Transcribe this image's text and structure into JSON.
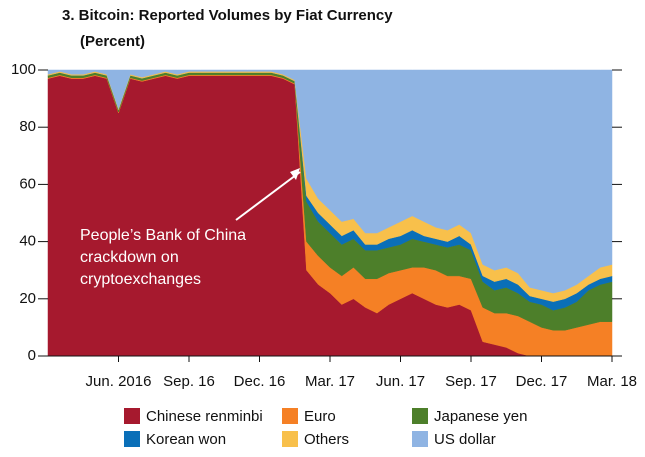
{
  "chart_data": {
    "type": "stacked_area",
    "title": "3. Bitcoin: Reported Volumes by Fiat Currency",
    "subtitle": "(Percent)",
    "annotation": [
      "People’s Bank of China",
      "crackdown on",
      "cryptoexchanges"
    ],
    "categories": [
      null,
      null,
      null,
      null,
      null,
      null,
      "Jun. 2016",
      null,
      null,
      null,
      null,
      null,
      "Sep. 16",
      null,
      null,
      null,
      null,
      null,
      "Dec. 16",
      null,
      null,
      null,
      null,
      null,
      "Mar. 17",
      null,
      null,
      null,
      null,
      null,
      "Jun. 17",
      null,
      null,
      null,
      null,
      null,
      "Sep. 17",
      null,
      null,
      null,
      null,
      null,
      "Dec. 17",
      null,
      null,
      null,
      null,
      null,
      "Mar. 18"
    ],
    "ylim": [
      0,
      100
    ],
    "yticks": [
      0,
      20,
      40,
      60,
      80,
      100
    ],
    "series": [
      {
        "name": "Chinese renminbi",
        "color": "#a6192e",
        "values": [
          97,
          98,
          97,
          97,
          98,
          97,
          85,
          97,
          96,
          97,
          98,
          97,
          98,
          98,
          98,
          98,
          98,
          98,
          98,
          98,
          97,
          95,
          30,
          25,
          22,
          18,
          20,
          17,
          15,
          18,
          20,
          22,
          20,
          18,
          17,
          18,
          16,
          5,
          4,
          3,
          1,
          0,
          0,
          0,
          0,
          0,
          0,
          0,
          0
        ]
      },
      {
        "name": "Euro",
        "color": "#f58025",
        "values": [
          0.3,
          0.3,
          0.3,
          0.3,
          0.3,
          0.3,
          0.3,
          0.3,
          0.3,
          0.3,
          0.3,
          0.3,
          0.3,
          0.3,
          0.3,
          0.3,
          0.3,
          0.3,
          0.3,
          0.3,
          0.3,
          0.3,
          10,
          10,
          9,
          10,
          11,
          10,
          12,
          11,
          10,
          9,
          11,
          12,
          11,
          10,
          11,
          12,
          11,
          12,
          13,
          12,
          10,
          9,
          9,
          10,
          11,
          12,
          12
        ]
      },
      {
        "name": "Japanese yen",
        "color": "#4d7f2a",
        "values": [
          0.8,
          0.8,
          0.8,
          0.8,
          0.8,
          0.8,
          0.8,
          0.8,
          0.8,
          0.8,
          0.8,
          0.8,
          0.8,
          0.8,
          0.8,
          0.8,
          0.8,
          0.8,
          0.8,
          0.8,
          0.8,
          0.8,
          14,
          12,
          12,
          11,
          10,
          10,
          10,
          9,
          9,
          10,
          9,
          9,
          10,
          11,
          10,
          9,
          8,
          9,
          8,
          7,
          8,
          7,
          8,
          9,
          12,
          13,
          14
        ]
      },
      {
        "name": "Korean won",
        "color": "#0a6fb8",
        "values": [
          0,
          0,
          0,
          0,
          0,
          0,
          0,
          0,
          0,
          0,
          0,
          0,
          0,
          0,
          0,
          0,
          0,
          0,
          0,
          0,
          0,
          0,
          2,
          3,
          3,
          3,
          3,
          2,
          2,
          3,
          3,
          3,
          2,
          2,
          2,
          3,
          2,
          2,
          3,
          3,
          3,
          2,
          2,
          3,
          3,
          3,
          2,
          2,
          2
        ]
      },
      {
        "name": "Others",
        "color": "#f8c04b",
        "values": [
          0.4,
          0.4,
          0.4,
          0.4,
          0.4,
          0.4,
          0.4,
          0.4,
          0.4,
          0.4,
          0.4,
          0.4,
          0.4,
          0.4,
          0.4,
          0.4,
          0.4,
          0.4,
          0.4,
          0.4,
          0.4,
          0.4,
          6,
          5,
          5,
          5,
          4,
          4,
          4,
          4,
          5,
          5,
          5,
          4,
          4,
          4,
          4,
          4,
          4,
          4,
          4,
          3,
          3,
          3,
          3,
          3,
          3,
          4,
          4
        ]
      },
      {
        "name": "US dollar",
        "color": "#8fb4e3",
        "values": [
          1.5,
          0.5,
          1.5,
          1.5,
          0.5,
          1.5,
          13.5,
          1.5,
          2.5,
          1.5,
          0.5,
          1.5,
          0.5,
          0.5,
          0.5,
          0.5,
          0.5,
          0.5,
          0.5,
          0.5,
          1.5,
          3.5,
          38,
          45,
          49,
          53,
          52,
          57,
          57,
          55,
          53,
          51,
          53,
          55,
          56,
          54,
          57,
          68,
          70,
          69,
          71,
          76,
          77,
          78,
          77,
          75,
          72,
          69,
          68
        ]
      }
    ]
  }
}
